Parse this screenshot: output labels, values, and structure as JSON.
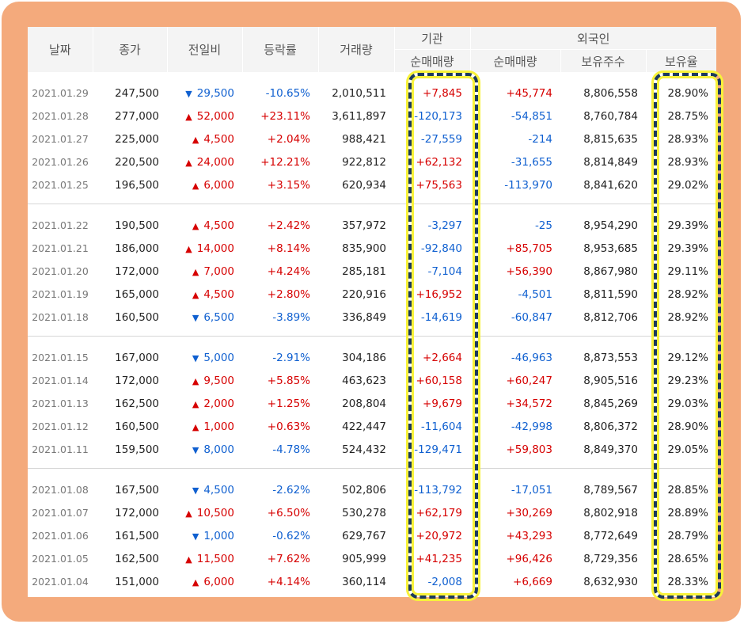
{
  "headers": {
    "date": "날짜",
    "close": "종가",
    "change": "전일비",
    "rate": "등락률",
    "volume": "거래량",
    "institution": "기관",
    "foreign": "외국인",
    "inst_net": "순매매량",
    "foreign_net": "순매매량",
    "foreign_shares": "보유주수",
    "foreign_ratio": "보유율"
  },
  "colors": {
    "up": "#d60000",
    "down": "#1060d0",
    "frame": "#f4aa7c",
    "highlight_border": "#1d3a5c",
    "highlight_glow": "#f8f23a"
  },
  "icons": {
    "up": "triangle-up-icon",
    "down": "triangle-down-icon"
  },
  "weeks": [
    {
      "rows": [
        {
          "date": "2021.01.29",
          "close": "247,500",
          "dir": "down",
          "change": "29,500",
          "rate": "-10.65%",
          "volume": "2,010,511",
          "inst": "+7,845",
          "foreign": "+45,774",
          "shares": "8,806,558",
          "ratio": "28.90%"
        },
        {
          "date": "2021.01.28",
          "close": "277,000",
          "dir": "up",
          "change": "52,000",
          "rate": "+23.11%",
          "volume": "3,611,897",
          "inst": "-120,173",
          "foreign": "-54,851",
          "shares": "8,760,784",
          "ratio": "28.75%"
        },
        {
          "date": "2021.01.27",
          "close": "225,000",
          "dir": "up",
          "change": "4,500",
          "rate": "+2.04%",
          "volume": "988,421",
          "inst": "-27,559",
          "foreign": "-214",
          "shares": "8,815,635",
          "ratio": "28.93%"
        },
        {
          "date": "2021.01.26",
          "close": "220,500",
          "dir": "up",
          "change": "24,000",
          "rate": "+12.21%",
          "volume": "922,812",
          "inst": "+62,132",
          "foreign": "-31,655",
          "shares": "8,814,849",
          "ratio": "28.93%"
        },
        {
          "date": "2021.01.25",
          "close": "196,500",
          "dir": "up",
          "change": "6,000",
          "rate": "+3.15%",
          "volume": "620,934",
          "inst": "+75,563",
          "foreign": "-113,970",
          "shares": "8,841,620",
          "ratio": "29.02%"
        }
      ]
    },
    {
      "rows": [
        {
          "date": "2021.01.22",
          "close": "190,500",
          "dir": "up",
          "change": "4,500",
          "rate": "+2.42%",
          "volume": "357,972",
          "inst": "-3,297",
          "foreign": "-25",
          "shares": "8,954,290",
          "ratio": "29.39%"
        },
        {
          "date": "2021.01.21",
          "close": "186,000",
          "dir": "up",
          "change": "14,000",
          "rate": "+8.14%",
          "volume": "835,900",
          "inst": "-92,840",
          "foreign": "+85,705",
          "shares": "8,953,685",
          "ratio": "29.39%"
        },
        {
          "date": "2021.01.20",
          "close": "172,000",
          "dir": "up",
          "change": "7,000",
          "rate": "+4.24%",
          "volume": "285,181",
          "inst": "-7,104",
          "foreign": "+56,390",
          "shares": "8,867,980",
          "ratio": "29.11%"
        },
        {
          "date": "2021.01.19",
          "close": "165,000",
          "dir": "up",
          "change": "4,500",
          "rate": "+2.80%",
          "volume": "220,916",
          "inst": "+16,952",
          "foreign": "-4,501",
          "shares": "8,811,590",
          "ratio": "28.92%"
        },
        {
          "date": "2021.01.18",
          "close": "160,500",
          "dir": "down",
          "change": "6,500",
          "rate": "-3.89%",
          "volume": "336,849",
          "inst": "-14,619",
          "foreign": "-60,847",
          "shares": "8,812,706",
          "ratio": "28.92%"
        }
      ]
    },
    {
      "rows": [
        {
          "date": "2021.01.15",
          "close": "167,000",
          "dir": "down",
          "change": "5,000",
          "rate": "-2.91%",
          "volume": "304,186",
          "inst": "+2,664",
          "foreign": "-46,963",
          "shares": "8,873,553",
          "ratio": "29.12%"
        },
        {
          "date": "2021.01.14",
          "close": "172,000",
          "dir": "up",
          "change": "9,500",
          "rate": "+5.85%",
          "volume": "463,623",
          "inst": "+60,158",
          "foreign": "+60,247",
          "shares": "8,905,516",
          "ratio": "29.23%"
        },
        {
          "date": "2021.01.13",
          "close": "162,500",
          "dir": "up",
          "change": "2,000",
          "rate": "+1.25%",
          "volume": "208,804",
          "inst": "+9,679",
          "foreign": "+34,572",
          "shares": "8,845,269",
          "ratio": "29.03%"
        },
        {
          "date": "2021.01.12",
          "close": "160,500",
          "dir": "up",
          "change": "1,000",
          "rate": "+0.63%",
          "volume": "422,447",
          "inst": "-11,604",
          "foreign": "-42,998",
          "shares": "8,806,372",
          "ratio": "28.90%"
        },
        {
          "date": "2021.01.11",
          "close": "159,500",
          "dir": "down",
          "change": "8,000",
          "rate": "-4.78%",
          "volume": "524,432",
          "inst": "-129,471",
          "foreign": "+59,803",
          "shares": "8,849,370",
          "ratio": "29.05%"
        }
      ]
    },
    {
      "rows": [
        {
          "date": "2021.01.08",
          "close": "167,500",
          "dir": "down",
          "change": "4,500",
          "rate": "-2.62%",
          "volume": "502,806",
          "inst": "-113,792",
          "foreign": "-17,051",
          "shares": "8,789,567",
          "ratio": "28.85%"
        },
        {
          "date": "2021.01.07",
          "close": "172,000",
          "dir": "up",
          "change": "10,500",
          "rate": "+6.50%",
          "volume": "530,278",
          "inst": "+62,179",
          "foreign": "+30,269",
          "shares": "8,802,918",
          "ratio": "28.89%"
        },
        {
          "date": "2021.01.06",
          "close": "161,500",
          "dir": "down",
          "change": "1,000",
          "rate": "-0.62%",
          "volume": "629,767",
          "inst": "+20,972",
          "foreign": "+43,293",
          "shares": "8,772,649",
          "ratio": "28.79%"
        },
        {
          "date": "2021.01.05",
          "close": "162,500",
          "dir": "up",
          "change": "11,500",
          "rate": "+7.62%",
          "volume": "905,999",
          "inst": "+41,235",
          "foreign": "+96,426",
          "shares": "8,729,356",
          "ratio": "28.65%"
        },
        {
          "date": "2021.01.04",
          "close": "151,000",
          "dir": "up",
          "change": "6,000",
          "rate": "+4.14%",
          "volume": "360,114",
          "inst": "-2,008",
          "foreign": "+6,669",
          "shares": "8,632,930",
          "ratio": "28.33%"
        }
      ]
    }
  ]
}
